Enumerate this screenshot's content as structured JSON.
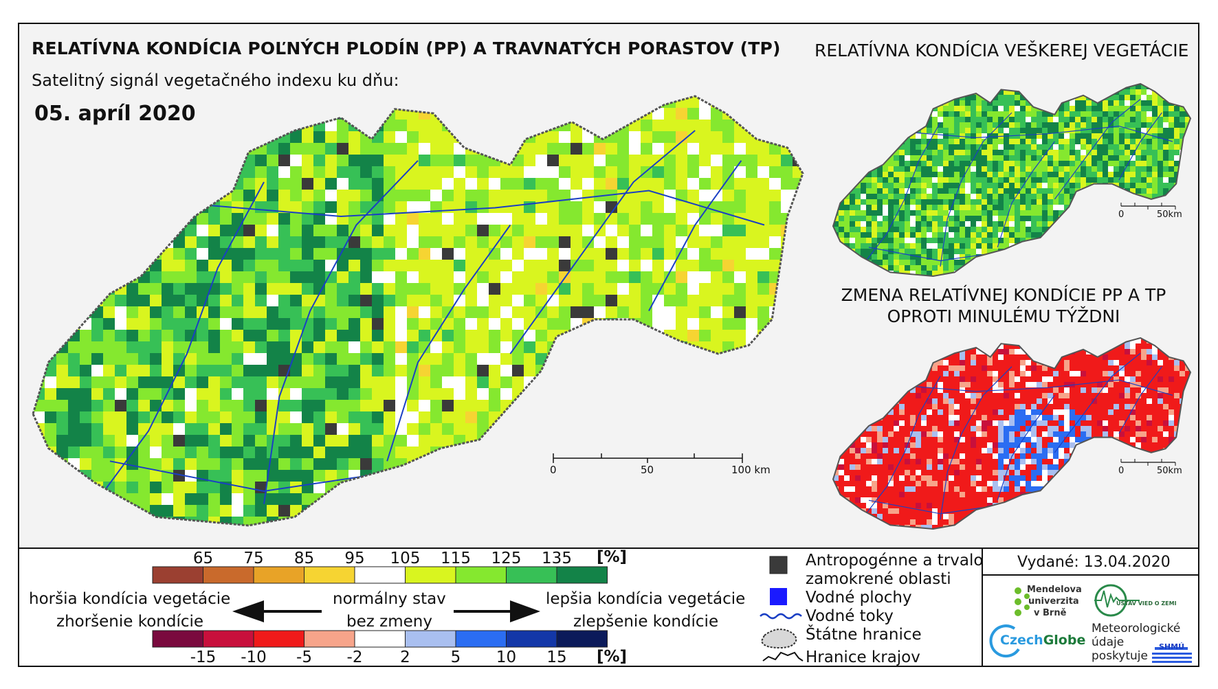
{
  "title_main": "RELATÍVNA KONDÍCIA POĽNÝCH PLODÍN (PP) A TRAVNATÝCH PORASTOV (TP)",
  "subtitle": "Satelitný signál vegetačného indexu ku dňu:",
  "date": "05. apríl 2020",
  "title_right": "RELATÍVNA KONDÍCIA VEŠKEREJ VEGETÁCIE",
  "title_change_line1": "ZMENA RELATÍVNEJ KONDÍCIE PP A TP",
  "title_change_line2": "OPROTI MINULÉMU TÝŽDNI",
  "scale_main": {
    "labels": [
      "0",
      "50",
      "100 km"
    ]
  },
  "scale_small": {
    "labels": [
      "0",
      "50km"
    ]
  },
  "legend_condition": {
    "unit": "[%]",
    "ticks": [
      "65",
      "75",
      "85",
      "95",
      "105",
      "115",
      "125",
      "135"
    ],
    "colors": [
      "#9b4031",
      "#c96a2c",
      "#e8a327",
      "#f6d432",
      "#ffffff",
      "#d9f51f",
      "#85e82f",
      "#37c056",
      "#138348"
    ]
  },
  "legend_change": {
    "unit": "[%]",
    "ticks": [
      "-15",
      "-10",
      "-5",
      "-2",
      "2",
      "5",
      "10",
      "15"
    ],
    "colors": [
      "#7a0a3e",
      "#c8103c",
      "#f01a1a",
      "#f7a48a",
      "#ffffff",
      "#a9bff0",
      "#2b6df2",
      "#1337a8",
      "#0b1a5a"
    ]
  },
  "arrow_labels": {
    "worse_1": "horšia kondícia vegetácie",
    "worse_2": "zhoršenie kondície",
    "normal_1": "normálny stav",
    "normal_2": "bez zmeny",
    "better_1": "lepšia kondícia vegetácie",
    "better_2": "zlepšenie kondície"
  },
  "symbols": {
    "anthropogenic_1": "Antropogénne a trvalo",
    "anthropogenic_2": "zamokrené oblasti",
    "water_bodies": "Vodné plochy",
    "rivers": "Vodné toky",
    "state_border": "Štátne hranice",
    "region_border": "Hranice krajov"
  },
  "issued": "Vydané: 13.04.2020",
  "logos": {
    "mendel_1": "Mendelova",
    "mendel_2": "univerzita",
    "mendel_3": "v Brně",
    "czechglobe_a": "Czech",
    "czechglobe_b": "Globe",
    "ustav": "ÚSTAV VIED O ZEMI",
    "meteo_1": "Meteorologické",
    "meteo_2": "údaje",
    "meteo_3": "poskytuje:",
    "shmu": "SHMÚ"
  },
  "colors": {
    "river": "#1a3fc4",
    "water": "#1a1aff",
    "urban": "#3a3a3a",
    "border": "#444444",
    "frame_bg": "#f3f3f3"
  }
}
